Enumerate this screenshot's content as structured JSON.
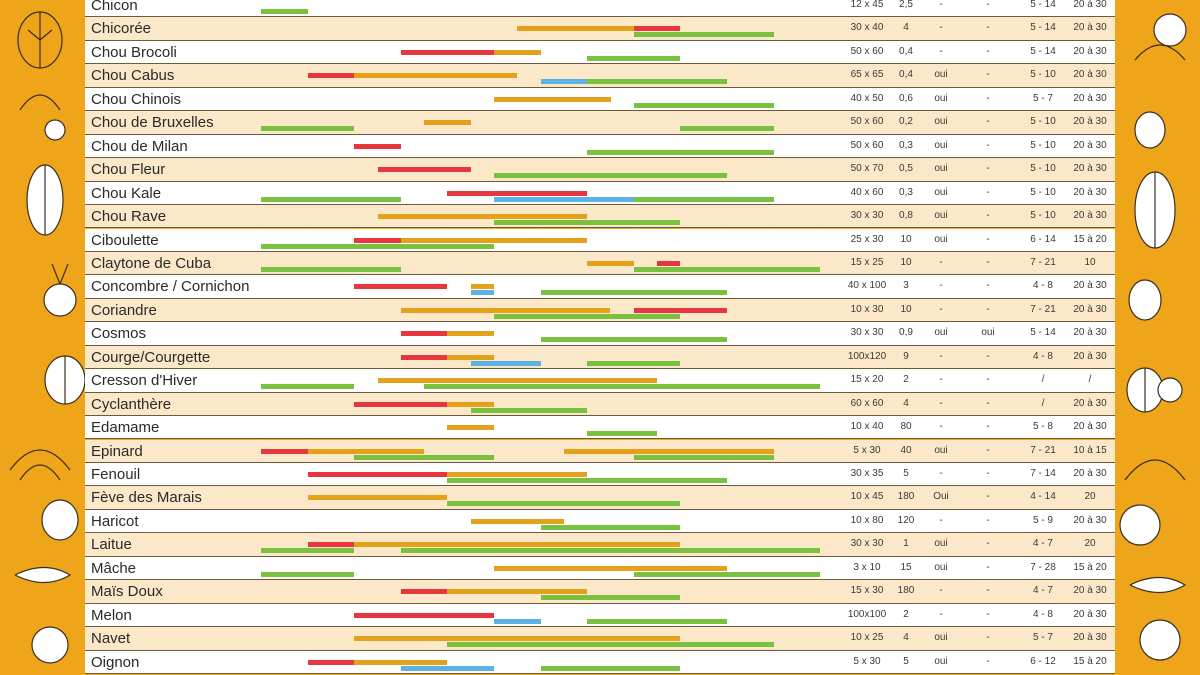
{
  "colors": {
    "sow": "#e8363f",
    "plant": "#e4a11b",
    "protect": "#5bb2e3",
    "harvest": "#79c13f"
  },
  "decor": {
    "left": "vegetable-illustrations",
    "right": "vegetable-illustrations"
  },
  "rows": [
    {
      "name": "Chicon",
      "spacing": "12 x 45",
      "weight": "2,5",
      "c3": "-",
      "c4": "-",
      "temp": "5 - 14",
      "days": "20 à 30"
    },
    {
      "name": "Chicorée",
      "spacing": "30 x 40",
      "weight": "4",
      "c3": "-",
      "c4": "-",
      "temp": "5 - 14",
      "days": "20 à 30"
    },
    {
      "name": "Chou Brocoli",
      "spacing": "50 x 60",
      "weight": "0,4",
      "c3": "-",
      "c4": "-",
      "temp": "5 - 14",
      "days": "20 à 30"
    },
    {
      "name": "Chou Cabus",
      "spacing": "65 x 65",
      "weight": "0,4",
      "c3": "oui",
      "c4": "-",
      "temp": "5 - 10",
      "days": "20 à 30"
    },
    {
      "name": "Chou Chinois",
      "spacing": "40 x 50",
      "weight": "0,6",
      "c3": "oui",
      "c4": "-",
      "temp": "5 - 7",
      "days": "20 à 30"
    },
    {
      "name": "Chou de Bruxelles",
      "spacing": "50 x 60",
      "weight": "0,2",
      "c3": "oui",
      "c4": "-",
      "temp": "5 - 10",
      "days": "20 à 30"
    },
    {
      "name": "Chou de Milan",
      "spacing": "50 x 60",
      "weight": "0,3",
      "c3": "oui",
      "c4": "-",
      "temp": "5 - 10",
      "days": "20 à 30"
    },
    {
      "name": "Chou Fleur",
      "spacing": "50 x 70",
      "weight": "0,5",
      "c3": "oui",
      "c4": "-",
      "temp": "5 - 10",
      "days": "20 à 30"
    },
    {
      "name": "Chou Kale",
      "spacing": "40 x 60",
      "weight": "0,3",
      "c3": "oui",
      "c4": "-",
      "temp": "5 - 10",
      "days": "20 à 30"
    },
    {
      "name": "Chou Rave",
      "spacing": "30 x 30",
      "weight": "0,8",
      "c3": "oui",
      "c4": "-",
      "temp": "5 - 10",
      "days": "20 à 30"
    },
    {
      "name": "Ciboulette",
      "spacing": "25 x 30",
      "weight": "10",
      "c3": "oui",
      "c4": "-",
      "temp": "6 - 14",
      "days": "15 à 20"
    },
    {
      "name": "Claytone de Cuba",
      "spacing": "15 x 25",
      "weight": "10",
      "c3": "-",
      "c4": "-",
      "temp": "7 - 21",
      "days": "10"
    },
    {
      "name": "Concombre / Cornichon",
      "spacing": "40 x 100",
      "weight": "3",
      "c3": "-",
      "c4": "-",
      "temp": "4 - 8",
      "days": "20 à 30"
    },
    {
      "name": "Coriandre",
      "spacing": "10 x 30",
      "weight": "10",
      "c3": "-",
      "c4": "-",
      "temp": "7 - 21",
      "days": "20 à 30"
    },
    {
      "name": "Cosmos",
      "spacing": "30 x 30",
      "weight": "0,9",
      "c3": "oui",
      "c4": "oui",
      "temp": "5 - 14",
      "days": "20 à 30"
    },
    {
      "name": "Courge/Courgette",
      "spacing": "100x120",
      "weight": "9",
      "c3": "-",
      "c4": "-",
      "temp": "4 - 8",
      "days": "20 à 30"
    },
    {
      "name": "Cresson d'Hiver",
      "spacing": "15 x 20",
      "weight": "2",
      "c3": "-",
      "c4": "-",
      "temp": "/",
      "days": "/"
    },
    {
      "name": "Cyclanthère",
      "spacing": "60 x 60",
      "weight": "4",
      "c3": "-",
      "c4": "-",
      "temp": "/",
      "days": "20 à 30"
    },
    {
      "name": "Edamame",
      "spacing": "10 x 40",
      "weight": "80",
      "c3": "-",
      "c4": "-",
      "temp": "5 - 8",
      "days": "20 à 30"
    },
    {
      "name": "Epinard",
      "spacing": "5 x 30",
      "weight": "40",
      "c3": "oui",
      "c4": "-",
      "temp": "7 - 21",
      "days": "10 à 15"
    },
    {
      "name": "Fenouil",
      "spacing": "30 x 35",
      "weight": "5",
      "c3": "-",
      "c4": "-",
      "temp": "7 - 14",
      "days": "20 à 30"
    },
    {
      "name": "Fève des Marais",
      "spacing": "10 x 45",
      "weight": "180",
      "c3": "Oui",
      "c4": "-",
      "temp": "4 - 14",
      "days": "20"
    },
    {
      "name": "Haricot",
      "spacing": "10 x 80",
      "weight": "120",
      "c3": "-",
      "c4": "-",
      "temp": "5 - 9",
      "days": "20 à 30"
    },
    {
      "name": "Laitue",
      "spacing": "30 x 30",
      "weight": "1",
      "c3": "oui",
      "c4": "-",
      "temp": "4 - 7",
      "days": "20"
    },
    {
      "name": "Mâche",
      "spacing": "3 x 10",
      "weight": "15",
      "c3": "oui",
      "c4": "-",
      "temp": "7 - 28",
      "days": "15 à 20"
    },
    {
      "name": "Maïs Doux",
      "spacing": "15 x 30",
      "weight": "180",
      "c3": "-",
      "c4": "-",
      "temp": "4 - 7",
      "days": "20 à 30"
    },
    {
      "name": "Melon",
      "spacing": "100x100",
      "weight": "2",
      "c3": "-",
      "c4": "-",
      "temp": "4 - 8",
      "days": "20 à 30"
    },
    {
      "name": "Navet",
      "spacing": "10 x 25",
      "weight": "4",
      "c3": "oui",
      "c4": "-",
      "temp": "5 - 7",
      "days": "20 à 30"
    },
    {
      "name": "Oignon",
      "spacing": "5 x 30",
      "weight": "5",
      "c3": "oui",
      "c4": "-",
      "temp": "6 - 12",
      "days": "15 à 20"
    }
  ],
  "bars": [
    [
      [
        "green",
        0,
        1
      ]
    ],
    [
      [
        "gold",
        5.5,
        8
      ],
      [
        "red",
        8,
        9
      ],
      [
        "green",
        8,
        11
      ]
    ],
    [
      [
        "red",
        3,
        5
      ],
      [
        "gold",
        5,
        6
      ],
      [
        "green",
        7,
        9
      ]
    ],
    [
      [
        "red",
        1,
        2
      ],
      [
        "gold",
        2,
        5.5
      ],
      [
        "blue",
        6,
        10
      ],
      [
        "green",
        7,
        10
      ]
    ],
    [
      [
        "gold",
        5,
        7.5
      ],
      [
        "green",
        8,
        11
      ]
    ],
    [
      [
        "gold",
        3.5,
        4.5
      ],
      [
        "green",
        0,
        2
      ],
      [
        "green",
        9,
        11
      ]
    ],
    [
      [
        "red",
        2,
        3
      ],
      [
        "green",
        7,
        11
      ]
    ],
    [
      [
        "red",
        2.5,
        4.5
      ],
      [
        "green",
        5,
        10
      ]
    ],
    [
      [
        "red",
        4,
        7
      ],
      [
        "blue",
        5,
        8
      ],
      [
        "green",
        0,
        3
      ],
      [
        "green",
        8,
        11
      ]
    ],
    [
      [
        "gold",
        2.5,
        7
      ],
      [
        "green",
        5,
        9
      ]
    ],
    [
      [
        "red",
        2,
        3
      ],
      [
        "gold",
        3,
        7
      ],
      [
        "green",
        0,
        5
      ]
    ],
    [
      [
        "red",
        8.5,
        9
      ],
      [
        "gold",
        7,
        8
      ],
      [
        "green",
        0,
        3
      ],
      [
        "green",
        8,
        12
      ]
    ],
    [
      [
        "red",
        2,
        4
      ],
      [
        "gold",
        4.5,
        5
      ],
      [
        "blue",
        4.5,
        5
      ],
      [
        "green",
        6,
        10
      ]
    ],
    [
      [
        "red",
        8,
        10
      ],
      [
        "gold",
        3,
        7.5
      ],
      [
        "green",
        5,
        9
      ]
    ],
    [
      [
        "red",
        3,
        4
      ],
      [
        "gold",
        4,
        5
      ],
      [
        "green",
        6,
        10
      ]
    ],
    [
      [
        "red",
        3,
        4
      ],
      [
        "gold",
        4,
        5
      ],
      [
        "blue",
        4.5,
        6
      ],
      [
        "green",
        7,
        9
      ]
    ],
    [
      [
        "gold",
        2.5,
        8.5
      ],
      [
        "green",
        0,
        2
      ],
      [
        "green",
        3.5,
        12
      ]
    ],
    [
      [
        "red",
        2,
        4
      ],
      [
        "gold",
        4,
        5
      ],
      [
        "blue",
        4.5,
        5
      ],
      [
        "green",
        4.5,
        7
      ]
    ],
    [
      [
        "gold",
        4,
        5
      ],
      [
        "green",
        7,
        8.5
      ]
    ],
    [
      [
        "red",
        0,
        1
      ],
      [
        "gold",
        1,
        3.5
      ],
      [
        "gold",
        6.5,
        11
      ],
      [
        "green",
        2,
        5
      ],
      [
        "green",
        8,
        11
      ]
    ],
    [
      [
        "red",
        1,
        4
      ],
      [
        "gold",
        4,
        7
      ],
      [
        "green",
        4,
        10
      ]
    ],
    [
      [
        "red",
        1,
        4
      ],
      [
        "gold",
        1,
        4
      ],
      [
        "green",
        4,
        9
      ]
    ],
    [
      [
        "gold",
        4.5,
        6.5
      ],
      [
        "green",
        6,
        9
      ]
    ],
    [
      [
        "red",
        1,
        2
      ],
      [
        "gold",
        2,
        9
      ],
      [
        "green",
        0,
        2
      ],
      [
        "green",
        3,
        12
      ]
    ],
    [
      [
        "gold",
        5,
        10
      ],
      [
        "green",
        0,
        2
      ],
      [
        "green",
        8,
        12
      ]
    ],
    [
      [
        "red",
        3,
        4
      ],
      [
        "gold",
        4,
        7
      ],
      [
        "green",
        6,
        9
      ]
    ],
    [
      [
        "red",
        2,
        5
      ],
      [
        "blue",
        5,
        6
      ],
      [
        "green",
        7,
        10
      ]
    ],
    [
      [
        "gold",
        2,
        9
      ],
      [
        "green",
        4,
        11
      ]
    ],
    [
      [
        "red",
        1,
        2
      ],
      [
        "gold",
        2,
        4
      ],
      [
        "blue",
        3,
        5
      ],
      [
        "green",
        6,
        9
      ]
    ]
  ]
}
